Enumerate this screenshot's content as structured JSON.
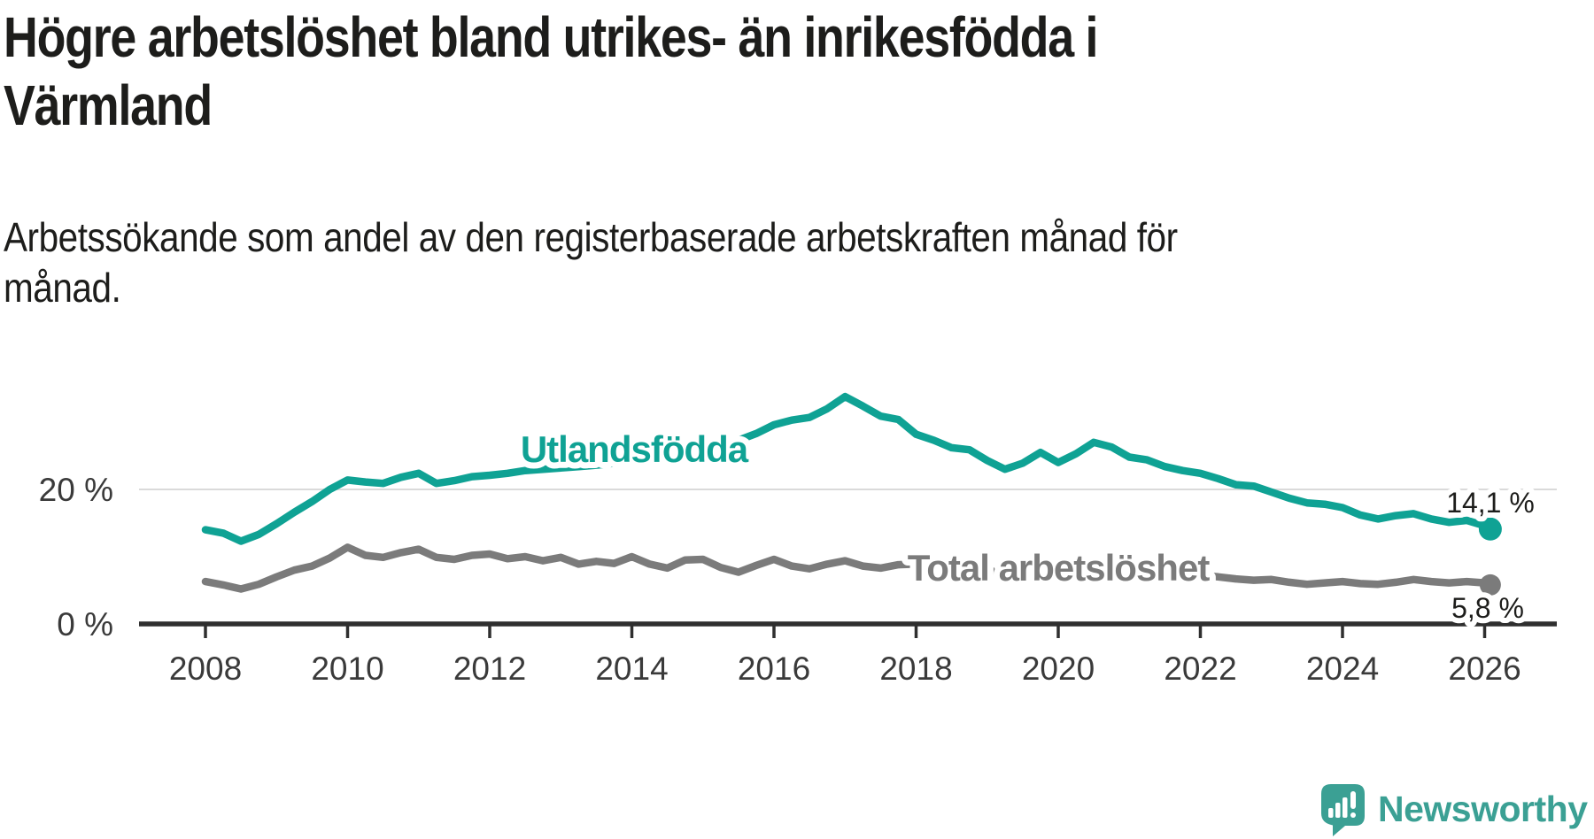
{
  "header": {
    "title_line1": "Högre arbetslöshet bland utrikes- än inrikesfödda i",
    "title_line2": "Värmland",
    "subtitle_line1": "Arbetssökande som andel av den registerbaserade arbetskraften månad för",
    "subtitle_line2": "månad."
  },
  "colors": {
    "accent_teal": "#0fa294",
    "line_gray": "#7b7b7b",
    "axis": "#2f2f2f",
    "gridline": "#dadada",
    "text_dark": "#1d1d1b",
    "logo_teal": "#3ba094"
  },
  "chart_data": {
    "type": "line",
    "title": "Högre arbetslöshet bland utrikes- än inrikesfödda i Värmland",
    "subtitle": "Arbetssökande som andel av den registerbaserade arbetskraften månad för månad.",
    "xlabel": "",
    "ylabel": "",
    "unit": "%",
    "xlim": [
      2007.9,
      2026.6
    ],
    "ylim": [
      0,
      35
    ],
    "grid": "y-gridline-at-20-only",
    "legend_position": "inline-labels-on-lines",
    "x_ticks": [
      "2008",
      "2010",
      "2012",
      "2014",
      "2016",
      "2018",
      "2020",
      "2022",
      "2024",
      "2026"
    ],
    "y_ticks": [
      {
        "value": 0,
        "label": "0 %"
      },
      {
        "value": 20,
        "label": "20 %"
      }
    ],
    "series": [
      {
        "name": "Utlandsfödda",
        "color": "#0fa294",
        "end_value": 14.1,
        "end_label": "14,1 %",
        "points": [
          [
            2008.0,
            14.0
          ],
          [
            2008.25,
            13.5
          ],
          [
            2008.5,
            12.3
          ],
          [
            2008.75,
            13.3
          ],
          [
            2009.0,
            14.9
          ],
          [
            2009.25,
            16.6
          ],
          [
            2009.5,
            18.2
          ],
          [
            2009.75,
            20.0
          ],
          [
            2010.0,
            21.4
          ],
          [
            2010.25,
            21.1
          ],
          [
            2010.5,
            20.9
          ],
          [
            2010.75,
            21.8
          ],
          [
            2011.0,
            22.4
          ],
          [
            2011.25,
            20.9
          ],
          [
            2011.5,
            21.3
          ],
          [
            2011.75,
            21.9
          ],
          [
            2012.0,
            22.1
          ],
          [
            2012.25,
            22.4
          ],
          [
            2012.5,
            22.8
          ],
          [
            2012.75,
            23.0
          ],
          [
            2013.0,
            23.2
          ],
          [
            2013.25,
            23.4
          ],
          [
            2013.5,
            23.6
          ],
          [
            2013.75,
            23.9
          ],
          [
            2014.0,
            24.2
          ],
          [
            2014.25,
            24.6
          ],
          [
            2014.5,
            25.0
          ],
          [
            2014.75,
            25.5
          ],
          [
            2015.0,
            26.0
          ],
          [
            2015.25,
            26.6
          ],
          [
            2015.5,
            27.3
          ],
          [
            2015.75,
            28.3
          ],
          [
            2016.0,
            29.6
          ],
          [
            2016.25,
            30.3
          ],
          [
            2016.5,
            30.7
          ],
          [
            2016.75,
            32.0
          ],
          [
            2017.0,
            33.8
          ],
          [
            2017.25,
            32.4
          ],
          [
            2017.5,
            30.9
          ],
          [
            2017.75,
            30.4
          ],
          [
            2018.0,
            28.2
          ],
          [
            2018.25,
            27.3
          ],
          [
            2018.5,
            26.2
          ],
          [
            2018.75,
            25.9
          ],
          [
            2019.0,
            24.3
          ],
          [
            2019.25,
            23.0
          ],
          [
            2019.5,
            23.9
          ],
          [
            2019.75,
            25.5
          ],
          [
            2020.0,
            24.0
          ],
          [
            2020.25,
            25.3
          ],
          [
            2020.5,
            27.0
          ],
          [
            2020.75,
            26.3
          ],
          [
            2021.0,
            24.8
          ],
          [
            2021.25,
            24.4
          ],
          [
            2021.5,
            23.4
          ],
          [
            2021.75,
            22.8
          ],
          [
            2022.0,
            22.4
          ],
          [
            2022.25,
            21.6
          ],
          [
            2022.5,
            20.7
          ],
          [
            2022.75,
            20.5
          ],
          [
            2023.0,
            19.6
          ],
          [
            2023.25,
            18.7
          ],
          [
            2023.5,
            18.0
          ],
          [
            2023.75,
            17.8
          ],
          [
            2024.0,
            17.3
          ],
          [
            2024.25,
            16.2
          ],
          [
            2024.5,
            15.6
          ],
          [
            2024.75,
            16.1
          ],
          [
            2025.0,
            16.4
          ],
          [
            2025.25,
            15.6
          ],
          [
            2025.5,
            15.1
          ],
          [
            2025.75,
            15.4
          ],
          [
            2026.0,
            14.6
          ],
          [
            2026.08,
            14.1
          ]
        ]
      },
      {
        "name": "Total arbetslöshet",
        "color": "#7b7b7b",
        "end_value": 5.8,
        "end_label": "5,8 %",
        "points": [
          [
            2008.0,
            6.3
          ],
          [
            2008.25,
            5.8
          ],
          [
            2008.5,
            5.2
          ],
          [
            2008.75,
            5.9
          ],
          [
            2009.0,
            7.0
          ],
          [
            2009.25,
            8.0
          ],
          [
            2009.5,
            8.6
          ],
          [
            2009.75,
            9.8
          ],
          [
            2010.0,
            11.4
          ],
          [
            2010.25,
            10.2
          ],
          [
            2010.5,
            9.9
          ],
          [
            2010.75,
            10.6
          ],
          [
            2011.0,
            11.1
          ],
          [
            2011.25,
            9.9
          ],
          [
            2011.5,
            9.6
          ],
          [
            2011.75,
            10.2
          ],
          [
            2012.0,
            10.4
          ],
          [
            2012.25,
            9.7
          ],
          [
            2012.5,
            10.0
          ],
          [
            2012.75,
            9.4
          ],
          [
            2013.0,
            9.9
          ],
          [
            2013.25,
            8.9
          ],
          [
            2013.5,
            9.3
          ],
          [
            2013.75,
            9.0
          ],
          [
            2014.0,
            10.0
          ],
          [
            2014.25,
            8.9
          ],
          [
            2014.5,
            8.3
          ],
          [
            2014.75,
            9.5
          ],
          [
            2015.0,
            9.6
          ],
          [
            2015.25,
            8.4
          ],
          [
            2015.5,
            7.7
          ],
          [
            2015.75,
            8.7
          ],
          [
            2016.0,
            9.6
          ],
          [
            2016.25,
            8.6
          ],
          [
            2016.5,
            8.2
          ],
          [
            2016.75,
            8.9
          ],
          [
            2017.0,
            9.4
          ],
          [
            2017.25,
            8.6
          ],
          [
            2017.5,
            8.3
          ],
          [
            2017.75,
            8.8
          ],
          [
            2018.0,
            8.9
          ],
          [
            2018.25,
            8.0
          ],
          [
            2018.5,
            7.7
          ],
          [
            2018.75,
            7.9
          ],
          [
            2019.0,
            8.0
          ],
          [
            2019.25,
            7.5
          ],
          [
            2019.5,
            7.6
          ],
          [
            2019.75,
            7.9
          ],
          [
            2020.0,
            8.0
          ],
          [
            2020.25,
            9.0
          ],
          [
            2020.5,
            9.3
          ],
          [
            2020.75,
            9.0
          ],
          [
            2021.0,
            8.8
          ],
          [
            2021.25,
            8.2
          ],
          [
            2021.5,
            7.6
          ],
          [
            2021.75,
            7.3
          ],
          [
            2022.0,
            7.2
          ],
          [
            2022.25,
            7.0
          ],
          [
            2022.5,
            6.7
          ],
          [
            2022.75,
            6.5
          ],
          [
            2023.0,
            6.6
          ],
          [
            2023.25,
            6.2
          ],
          [
            2023.5,
            5.9
          ],
          [
            2023.75,
            6.1
          ],
          [
            2024.0,
            6.3
          ],
          [
            2024.25,
            6.0
          ],
          [
            2024.5,
            5.9
          ],
          [
            2024.75,
            6.2
          ],
          [
            2025.0,
            6.6
          ],
          [
            2025.25,
            6.3
          ],
          [
            2025.5,
            6.1
          ],
          [
            2025.75,
            6.3
          ],
          [
            2026.0,
            6.1
          ],
          [
            2026.08,
            5.8
          ]
        ]
      }
    ]
  },
  "logo": {
    "text": "Newsworthy"
  }
}
